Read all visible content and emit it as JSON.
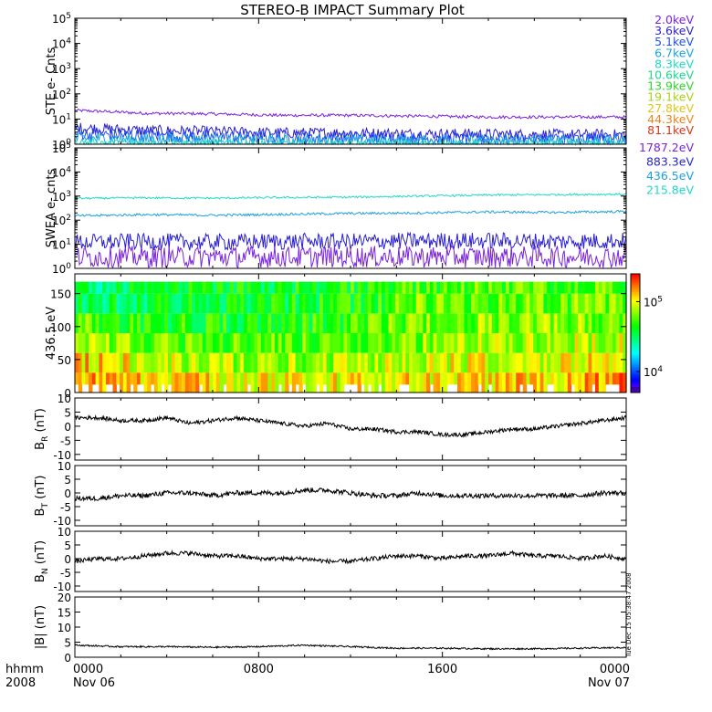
{
  "title": "STEREO-B IMPACT Summary Plot",
  "side_stamp": "Tue Dec 15 05:38:47 2008",
  "time_axis": {
    "corner_top": "hhmm",
    "corner_bottom": "2008",
    "ticks": [
      {
        "label": "0000",
        "date": "Nov 06",
        "t": 0
      },
      {
        "label": "0800",
        "date": "",
        "t": 8
      },
      {
        "label": "1600",
        "date": "",
        "t": 16
      },
      {
        "label": "0000",
        "date": "Nov 07",
        "t": 24
      }
    ],
    "range_hours": [
      0,
      24
    ]
  },
  "chart_data": [
    {
      "id": "ste",
      "type": "line",
      "ylabel": "STE e- Cnts",
      "yscale": "log",
      "ylim": [
        1,
        100000
      ],
      "yticks": [
        {
          "v": 1,
          "base": "10",
          "exp": "0"
        },
        {
          "v": 10,
          "base": "10",
          "exp": "1"
        },
        {
          "v": 100,
          "base": "10",
          "exp": "2"
        },
        {
          "v": 1000,
          "base": "10",
          "exp": "3"
        },
        {
          "v": 10000,
          "base": "10",
          "exp": "4"
        },
        {
          "v": 100000,
          "base": "10",
          "exp": "5"
        }
      ],
      "x": [
        0,
        3,
        6,
        9,
        12,
        15,
        18,
        21,
        24
      ],
      "series": [
        {
          "name": "2.0keV",
          "color": "#7a22dd",
          "values": [
            22,
            17,
            16,
            14,
            14,
            13,
            12,
            12,
            12
          ],
          "noise": 0.06
        },
        {
          "name": "3.6keV",
          "color": "#2a1fd0",
          "values": [
            4.5,
            3.5,
            3.2,
            2.8,
            2.8,
            2.6,
            2.5,
            2.4,
            2.4
          ],
          "noise": 0.22
        },
        {
          "name": "5.1keV",
          "color": "#1f52ee",
          "values": [
            2.6,
            2.2,
            2.0,
            1.8,
            1.8,
            1.7,
            1.6,
            1.6,
            1.6
          ],
          "noise": 0.25
        },
        {
          "name": "6.7keV",
          "color": "#1aa6dd",
          "values": [
            1.7,
            1.5,
            1.4,
            1.3,
            1.3,
            1.3,
            1.3,
            1.3,
            1.3
          ],
          "noise": 0.25
        },
        {
          "name": "8.3keV",
          "color": "#1fd9c7",
          "values": [
            1.2,
            1.1,
            1.1,
            1.05,
            1.05,
            1.05,
            1.05,
            1.05,
            1.05
          ],
          "noise": 0.15
        }
      ],
      "legend": [
        {
          "name": "2.0keV",
          "color": "#7a22dd"
        },
        {
          "name": "3.6keV",
          "color": "#2a1fd0"
        },
        {
          "name": "5.1keV",
          "color": "#1f52ee"
        },
        {
          "name": "6.7keV",
          "color": "#1aa6dd"
        },
        {
          "name": "8.3keV",
          "color": "#1fd9c7"
        },
        {
          "name": "10.6keV",
          "color": "#1ad98f"
        },
        {
          "name": "13.9keV",
          "color": "#2ed42a"
        },
        {
          "name": "19.1keV",
          "color": "#a8d11a"
        },
        {
          "name": "27.8keV",
          "color": "#e2c41a"
        },
        {
          "name": "44.3keV",
          "color": "#e8861a"
        },
        {
          "name": "81.1keV",
          "color": "#d6361a"
        }
      ]
    },
    {
      "id": "swea",
      "type": "line",
      "ylabel": "SWEA e- cnts",
      "yscale": "log",
      "ylim": [
        1,
        100000
      ],
      "yticks": [
        {
          "v": 1,
          "base": "10",
          "exp": "0"
        },
        {
          "v": 10,
          "base": "10",
          "exp": "1"
        },
        {
          "v": 100,
          "base": "10",
          "exp": "2"
        },
        {
          "v": 1000,
          "base": "10",
          "exp": "3"
        },
        {
          "v": 10000,
          "base": "10",
          "exp": "4"
        },
        {
          "v": 100000,
          "base": "10",
          "exp": "5"
        }
      ],
      "x": [
        0,
        3,
        6,
        9,
        12,
        15,
        18,
        21,
        24
      ],
      "series": [
        {
          "name": "215.8eV",
          "color": "#1fd9c7",
          "values": [
            800,
            850,
            820,
            870,
            900,
            1000,
            1100,
            1150,
            1200
          ],
          "noise": 0.04
        },
        {
          "name": "436.5eV",
          "color": "#1a9fe0",
          "values": [
            150,
            170,
            160,
            175,
            190,
            200,
            220,
            210,
            230
          ],
          "noise": 0.05
        },
        {
          "name": "883.3eV",
          "color": "#2a1fd0",
          "values": [
            12,
            13,
            12,
            13,
            13,
            14,
            14,
            13,
            14
          ],
          "noise": 0.35
        },
        {
          "name": "1787.2eV",
          "color": "#7a22dd",
          "values": [
            3,
            3,
            3,
            3,
            3,
            3,
            3,
            3,
            3
          ],
          "noise": 0.45
        }
      ],
      "legend": [
        {
          "name": "1787.2eV",
          "color": "#7a22dd"
        },
        {
          "name": "883.3eV",
          "color": "#2a1fd0"
        },
        {
          "name": "436.5eV",
          "color": "#1a9fe0"
        },
        {
          "name": "215.8eV",
          "color": "#1fd9c7"
        }
      ]
    },
    {
      "id": "pad",
      "type": "heatmap",
      "ylabel": "436.5 eV",
      "ylim": [
        0,
        180
      ],
      "yticks": [
        0,
        50,
        100,
        150
      ],
      "x": [
        0,
        3,
        6,
        9,
        12,
        15,
        18,
        21,
        24
      ],
      "y": [
        15,
        45,
        75,
        105,
        135,
        165
      ],
      "z": [
        [
          150000,
          130000,
          80000,
          60000,
          35000,
          30000
        ],
        [
          120000,
          90000,
          60000,
          45000,
          35000,
          35000
        ],
        [
          110000,
          80000,
          55000,
          45000,
          40000,
          40000
        ],
        [
          100000,
          75000,
          55000,
          45000,
          40000,
          40000
        ],
        [
          100000,
          75000,
          55000,
          48000,
          45000,
          45000
        ],
        [
          110000,
          90000,
          70000,
          65000,
          60000,
          55000
        ],
        [
          120000,
          95000,
          80000,
          70000,
          60000,
          55000
        ],
        [
          120000,
          95000,
          80000,
          70000,
          60000,
          55000
        ],
        [
          150000,
          110000,
          85000,
          70000,
          60000,
          55000
        ]
      ],
      "zscale": "log",
      "zlim": [
        5000,
        250000
      ],
      "colorbar_ticks": [
        {
          "v": 10000,
          "base": "10",
          "exp": "4"
        },
        {
          "v": 100000,
          "base": "10",
          "exp": "5"
        }
      ]
    },
    {
      "id": "br",
      "type": "line",
      "ylabel_main": "B",
      "ylabel_sub": "R",
      "ylabel_unit": "(nT)",
      "ylim": [
        -12,
        10
      ],
      "yticks": [
        -10,
        -5,
        0,
        5,
        10
      ],
      "x": [
        0,
        1,
        2,
        3,
        4,
        5,
        6,
        7,
        8,
        9,
        10,
        11,
        12,
        13,
        14,
        15,
        16,
        17,
        18,
        19,
        20,
        21,
        22,
        23,
        24
      ],
      "series": [
        {
          "name": "BR",
          "color": "#000000",
          "values": [
            3,
            3,
            2,
            2,
            3,
            1,
            2,
            3,
            2,
            1,
            0,
            1,
            -1,
            -1,
            -2,
            -2,
            -3,
            -3,
            -2,
            -1,
            -1,
            0,
            1,
            2,
            3
          ],
          "noise": 0.7
        }
      ]
    },
    {
      "id": "bt",
      "type": "line",
      "ylabel_main": "B",
      "ylabel_sub": "T",
      "ylabel_unit": "(nT)",
      "ylim": [
        -12,
        10
      ],
      "yticks": [
        -10,
        -5,
        0,
        5,
        10
      ],
      "x": [
        0,
        1,
        2,
        3,
        4,
        5,
        6,
        7,
        8,
        9,
        10,
        11,
        12,
        13,
        14,
        15,
        16,
        17,
        18,
        19,
        20,
        21,
        22,
        23,
        24
      ],
      "series": [
        {
          "name": "BT",
          "color": "#000000",
          "values": [
            -2,
            -2,
            -1,
            -1,
            0,
            0,
            -1,
            0,
            0,
            0,
            1,
            1,
            0,
            -1,
            -1,
            0,
            -1,
            -1,
            -1,
            -1,
            -1,
            -1,
            -1,
            0,
            0
          ],
          "noise": 0.9
        }
      ]
    },
    {
      "id": "bn",
      "type": "line",
      "ylabel_main": "B",
      "ylabel_sub": "N",
      "ylabel_unit": "(nT)",
      "ylim": [
        -12,
        10
      ],
      "yticks": [
        -10,
        -5,
        0,
        5,
        10
      ],
      "x": [
        0,
        1,
        2,
        3,
        4,
        5,
        6,
        7,
        8,
        9,
        10,
        11,
        12,
        13,
        14,
        15,
        16,
        17,
        18,
        19,
        20,
        21,
        22,
        23,
        24
      ],
      "series": [
        {
          "name": "BN",
          "color": "#000000",
          "values": [
            -1,
            0,
            0,
            1,
            2,
            2,
            1,
            1,
            0,
            0,
            0,
            -1,
            -1,
            0,
            1,
            1,
            0,
            1,
            1,
            2,
            1,
            1,
            0,
            1,
            0
          ],
          "noise": 0.8
        }
      ]
    },
    {
      "id": "bmag",
      "type": "line",
      "ylabel_main": "|B|",
      "ylabel_sub": "",
      "ylabel_unit": "(nT)",
      "ylim": [
        0,
        20
      ],
      "yticks": [
        0,
        5,
        10,
        15,
        20
      ],
      "x": [
        0,
        2,
        4,
        6,
        8,
        10,
        12,
        14,
        16,
        18,
        20,
        22,
        24
      ],
      "series": [
        {
          "name": "B",
          "color": "#000000",
          "values": [
            4,
            3.5,
            3.5,
            3.3,
            3.5,
            4,
            3.5,
            3,
            3,
            2.8,
            2.8,
            3,
            3.2
          ],
          "noise": 0.25
        }
      ]
    }
  ]
}
